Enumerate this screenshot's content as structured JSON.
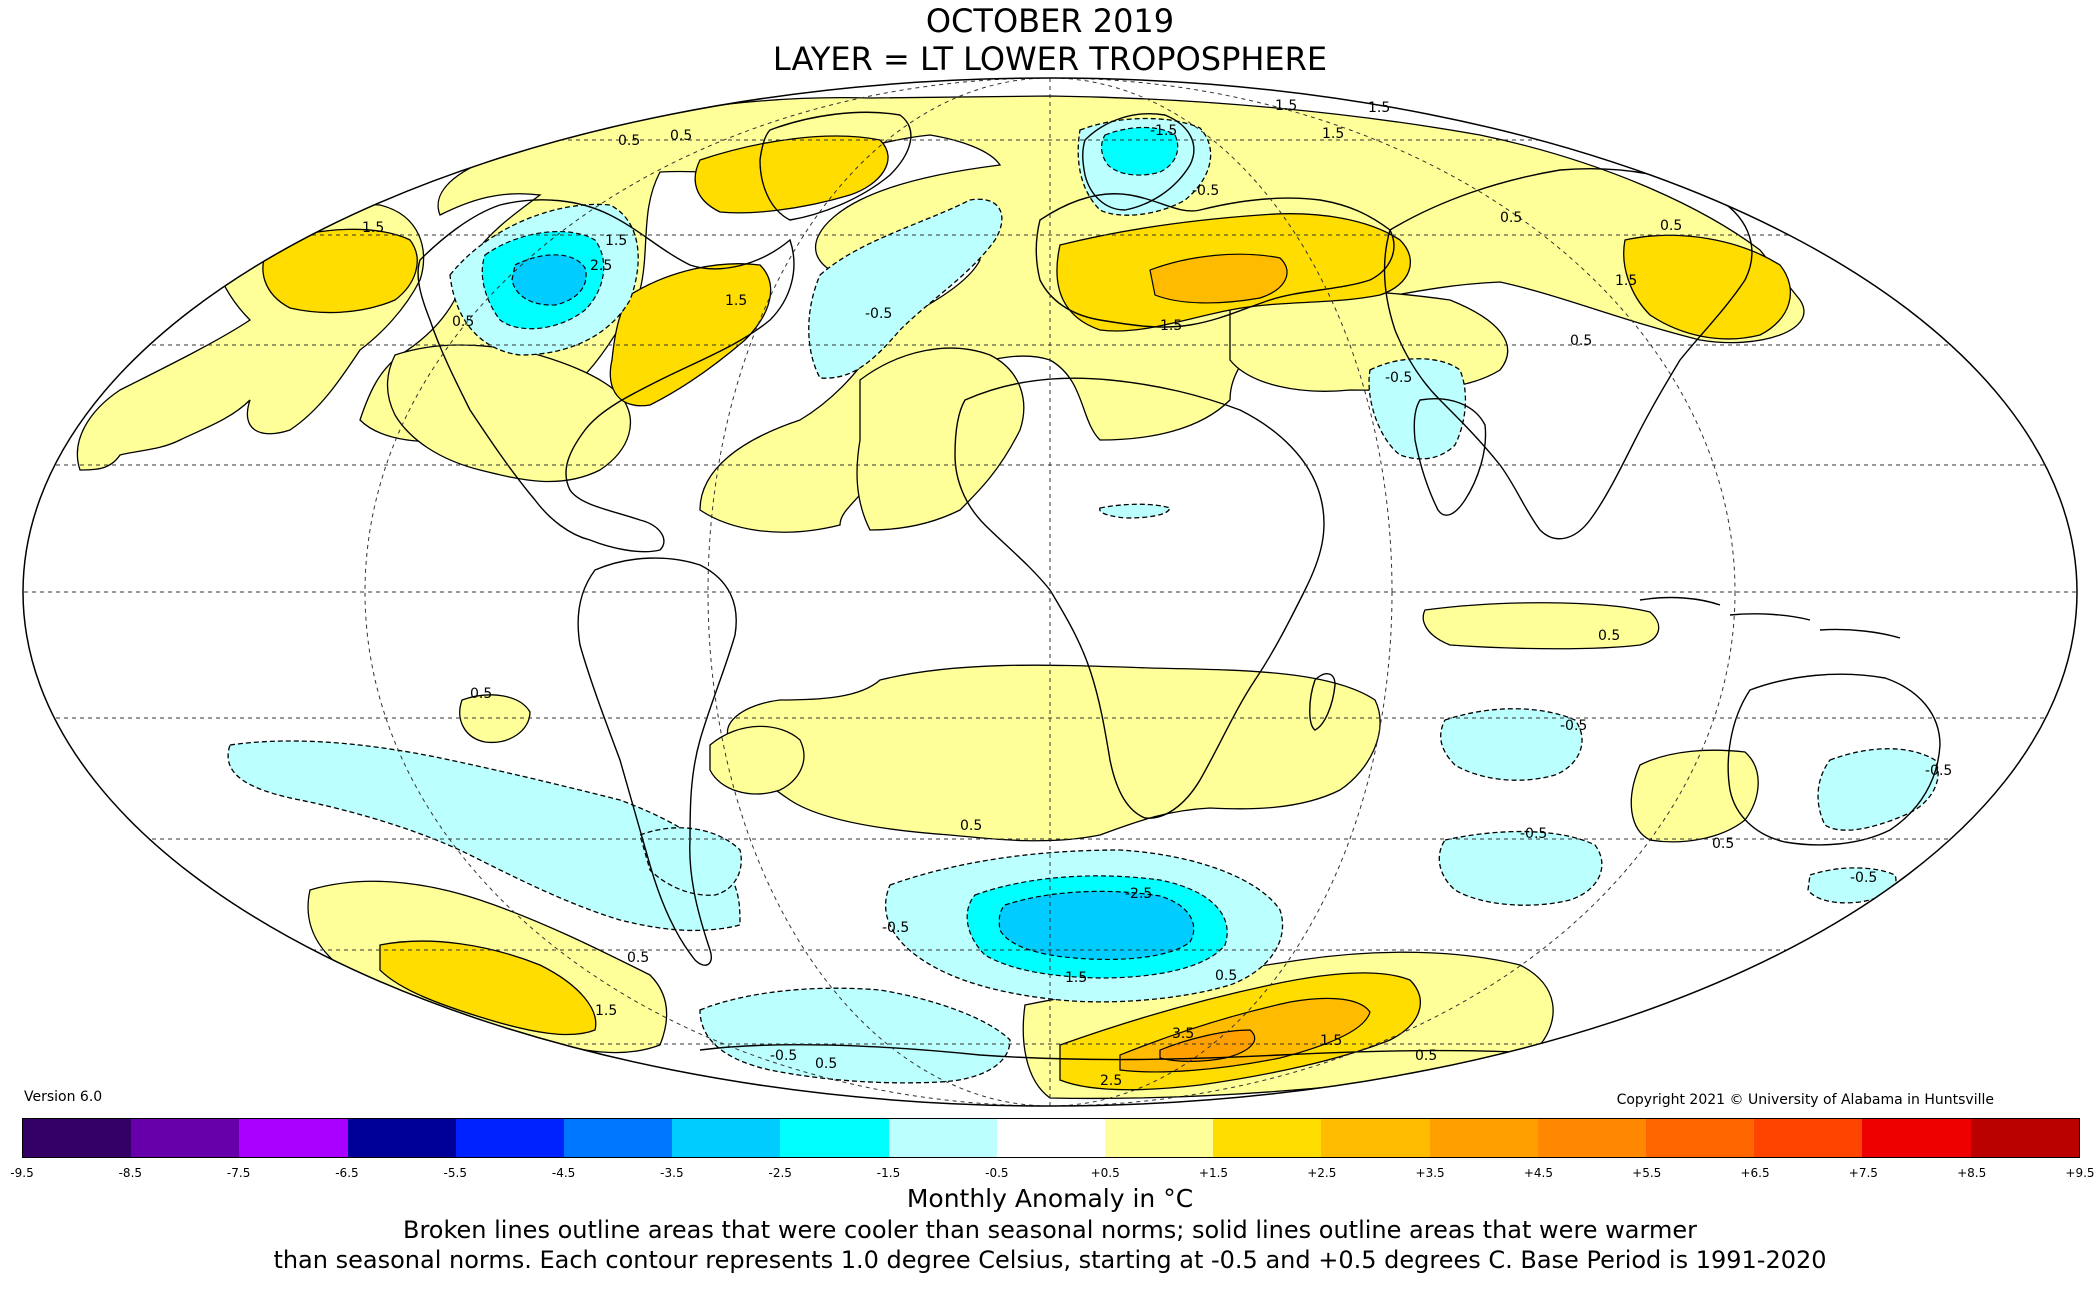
{
  "title": {
    "line1": "OCTOBER 2019",
    "line2": "LAYER = LT LOWER TROPOSPHERE"
  },
  "version": "Version 6.0",
  "copyright": "Copyright 2021 © University of Alabama in Huntsville",
  "colorbar": {
    "ticks": [
      "-9.5",
      "-8.5",
      "-7.5",
      "-6.5",
      "-5.5",
      "-4.5",
      "-3.5",
      "-2.5",
      "-1.5",
      "-0.5",
      "+0.5",
      "+1.5",
      "+2.5",
      "+3.5",
      "+4.5",
      "+5.5",
      "+6.5",
      "+7.5",
      "+8.5",
      "+9.5"
    ],
    "colors": [
      "#330066",
      "#6600aa",
      "#aa00ff",
      "#000099",
      "#0022ff",
      "#0077ff",
      "#00ccff",
      "#00ffff",
      "#bbffff",
      "#ffffff",
      "#ffff99",
      "#ffdd00",
      "#ffbb00",
      "#ffa000",
      "#ff8800",
      "#ff6600",
      "#ff4400",
      "#ee0000",
      "#bb0000"
    ]
  },
  "units_label": "Monthly Anomaly in °C",
  "note": {
    "line1": "Broken lines outline areas that were cooler than seasonal norms; solid lines outline areas that were warmer",
    "line2": "than seasonal norms. Each contour represents 1.0 degree Celsius, starting at -0.5 and +0.5 degrees C. Base Period is 1991-2020"
  },
  "contour_labels": [
    "0.5",
    "1.5",
    "2.5",
    "3.5",
    "-0.5",
    "-1.5",
    "-2.5"
  ],
  "anomaly_colors": {
    "cool_-0.5_to_-1.5": "#bbffff",
    "cool_-1.5_to_-2.5": "#00ffff",
    "cool_-2.5_to_-3.5": "#00ccff",
    "warm_0.5_to_1.5": "#ffff99",
    "warm_1.5_to_2.5": "#ffdd00",
    "warm_2.5_to_3.5": "#ffbb00",
    "warm_3.5_to_4.5": "#ffa000"
  }
}
